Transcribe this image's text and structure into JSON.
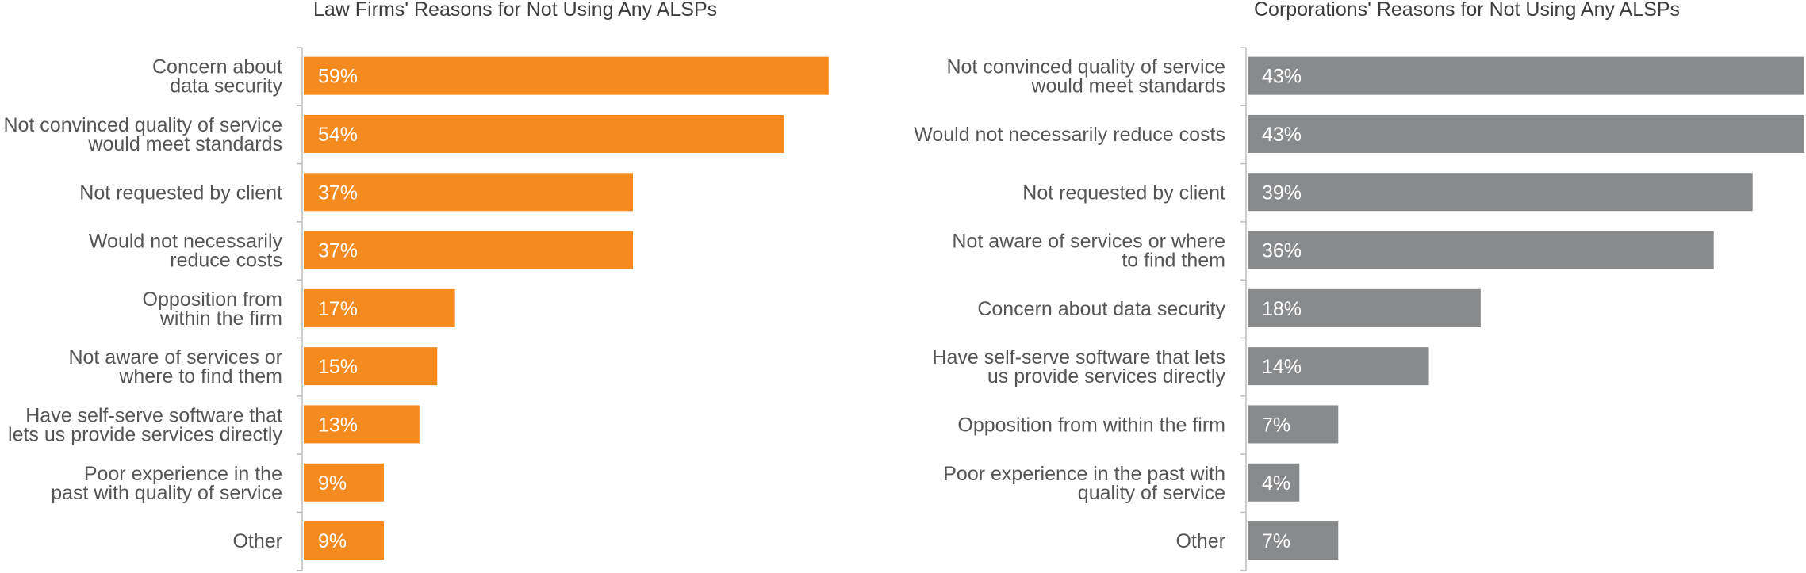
{
  "chart_data": [
    {
      "type": "bar",
      "orientation": "horizontal",
      "title": "Law Firms' Reasons for Not Using Any ALSPs",
      "categories": [
        [
          "Concern about",
          "data security"
        ],
        [
          "Not convinced quality of service",
          "would meet standards"
        ],
        [
          "Not requested by client"
        ],
        [
          "Would not necessarily",
          "reduce costs"
        ],
        [
          "Opposition from",
          "within the firm"
        ],
        [
          "Not aware of services or",
          "where to find them"
        ],
        [
          "Have self-serve software that",
          "lets us provide services directly"
        ],
        [
          "Poor experience in the",
          "past with quality of service"
        ],
        [
          "Other"
        ]
      ],
      "values": [
        59,
        54,
        37,
        37,
        17,
        15,
        13,
        9,
        9
      ],
      "value_labels": [
        "59%",
        "54%",
        "37%",
        "37%",
        "17%",
        "15%",
        "13%",
        "9%",
        "9%"
      ],
      "color": "#f58a1f",
      "xlim": [
        0,
        60
      ],
      "grid": false
    },
    {
      "type": "bar",
      "orientation": "horizontal",
      "title": "Corporations' Reasons for Not Using Any ALSPs",
      "categories": [
        [
          "Not convinced quality of service",
          "would meet standards"
        ],
        [
          "Would not necessarily reduce costs"
        ],
        [
          "Not requested by client"
        ],
        [
          "Not aware of services or where",
          "to find them"
        ],
        [
          "Concern about data security"
        ],
        [
          "Have self-serve software that lets",
          "us provide services directly"
        ],
        [
          "Opposition from within the firm"
        ],
        [
          "Poor experience in the past with",
          "quality of service"
        ],
        [
          "Other"
        ]
      ],
      "values": [
        43,
        43,
        39,
        36,
        18,
        14,
        7,
        4,
        7
      ],
      "value_labels": [
        "43%",
        "43%",
        "39%",
        "36%",
        "18%",
        "14%",
        "7%",
        "4%",
        "7%"
      ],
      "color": "#898a8c",
      "xlim": [
        0,
        43
      ],
      "grid": false
    }
  ]
}
